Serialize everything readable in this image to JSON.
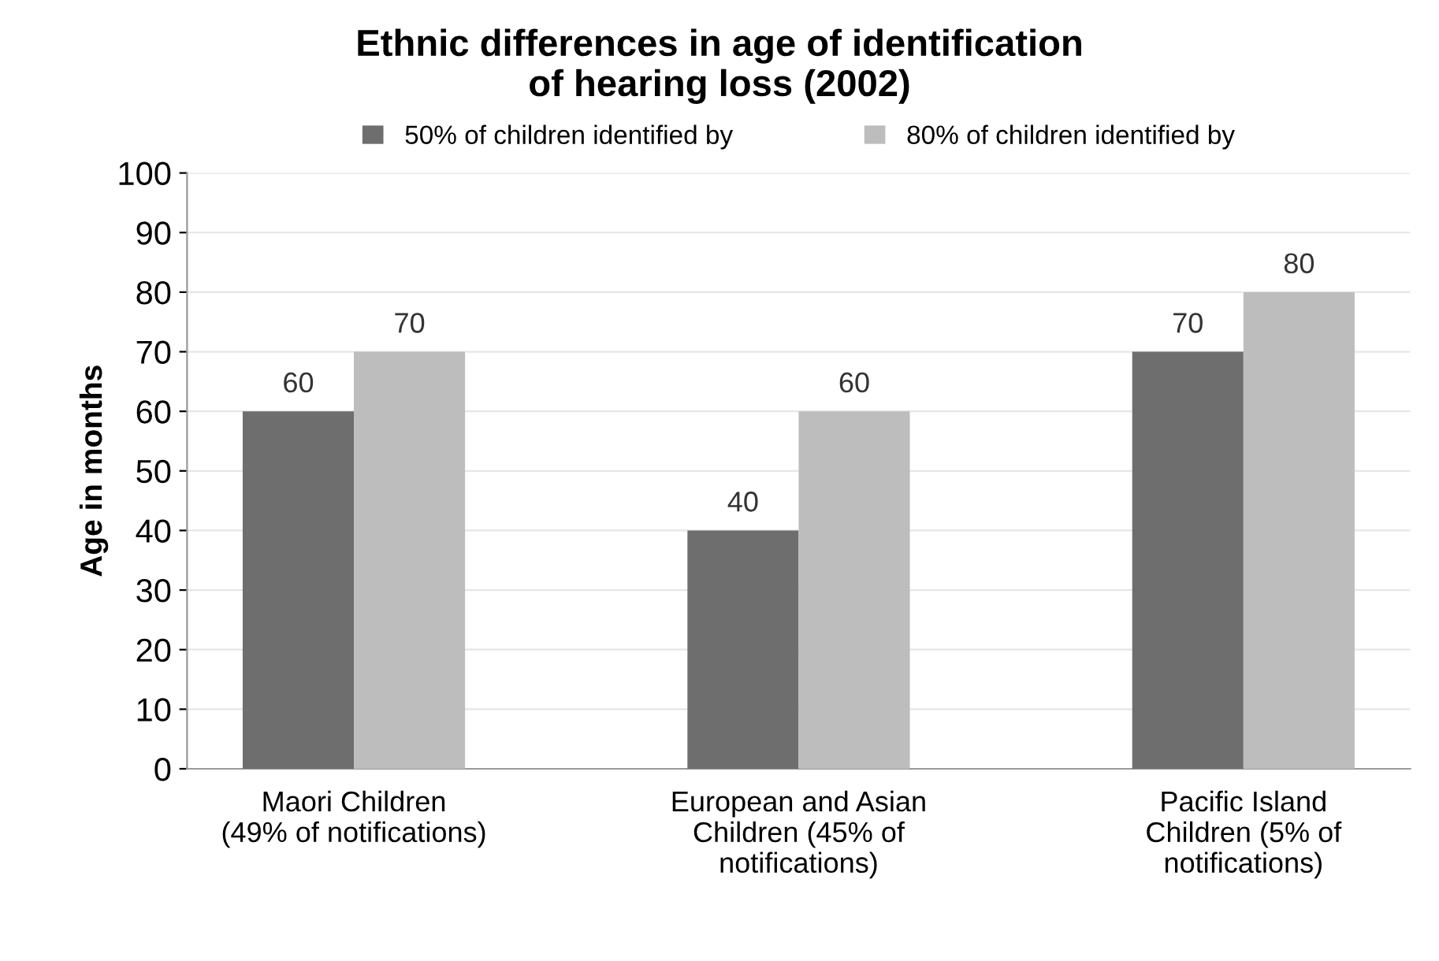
{
  "chart_data": {
    "type": "bar",
    "title": "Ethnic differences in age of identification\nof hearing loss (2002)",
    "ylabel": "Age in months",
    "categories": [
      "Maori Children\n(49% of notifications)",
      "European and Asian\nChildren (45% of\nnotifications)",
      "Pacific Island\nChildren (5% of\nnotifications)"
    ],
    "series": [
      {
        "name": "50% of children identified by",
        "color": "#6e6e6e",
        "values": [
          60,
          40,
          70
        ]
      },
      {
        "name": "80% of children identified by",
        "color": "#bdbdbd",
        "values": [
          70,
          60,
          80
        ]
      }
    ],
    "ylim": [
      0,
      100
    ],
    "yticks": [
      0,
      10,
      20,
      30,
      40,
      50,
      60,
      70,
      80,
      90,
      100
    ],
    "grid": "y",
    "legend": "top",
    "data_labels": true
  }
}
